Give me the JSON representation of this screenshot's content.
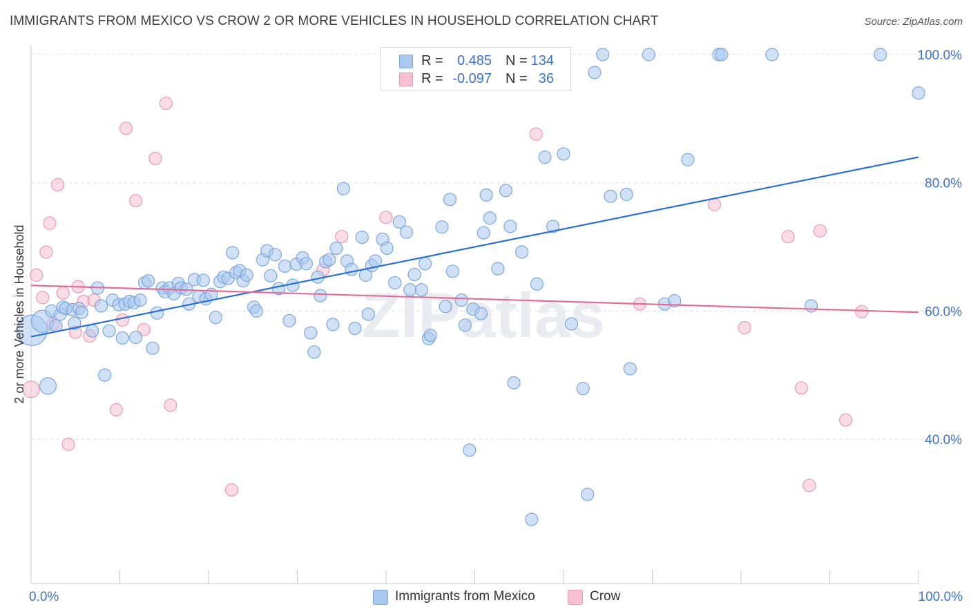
{
  "title": "IMMIGRANTS FROM MEXICO VS CROW 2 OR MORE VEHICLES IN HOUSEHOLD CORRELATION CHART",
  "source": "Source: ZipAtlas.com",
  "watermark": "ZIPatlas",
  "legend": {
    "rows": [
      {
        "r_label": "R =",
        "r_value": "0.485",
        "n_label": "N =",
        "n_value": "134"
      },
      {
        "r_label": "R =",
        "r_value": "-0.097",
        "n_label": "N =",
        "n_value": "36"
      }
    ]
  },
  "bottom_legend": {
    "series1": "Immigrants from Mexico",
    "series2": "Crow"
  },
  "colors": {
    "blue_fill": "#a9c8ee",
    "blue_stroke": "#7ba6dc",
    "blue_line": "#2a6fd0",
    "pink_fill": "#f6c0d0",
    "pink_stroke": "#e99ab3",
    "pink_line": "#e06d98",
    "tick_label": "#3b73c7",
    "grid": "#e1e1e1"
  },
  "chart_data": {
    "type": "scatter",
    "title": "IMMIGRANTS FROM MEXICO VS CROW 2 OR MORE VEHICLES IN HOUSEHOLD CORRELATION CHART",
    "xlabel": "",
    "ylabel": "2 or more Vehicles in Household",
    "xlim": [
      0,
      100
    ],
    "ylim": [
      17.5,
      100
    ],
    "x_tick_labels": [
      "0.0%",
      "100.0%"
    ],
    "y_ticks": [
      40,
      60,
      80,
      100
    ],
    "y_tick_labels": [
      "40.0%",
      "60.0%",
      "80.0%",
      "100.0%"
    ],
    "grid": true,
    "legend_position": "top-center",
    "series": [
      {
        "name": "Immigrants from Mexico",
        "r": 0.485,
        "n": 134,
        "trend": {
          "x": [
            0,
            100
          ],
          "y": [
            56.0,
            84.0
          ]
        },
        "points": [
          [
            0.1,
            57.0,
            22
          ],
          [
            1.3,
            58.4,
            16
          ],
          [
            1.9,
            48.3,
            12
          ],
          [
            2.3,
            60.0,
            9
          ],
          [
            2.8,
            57.7,
            9
          ],
          [
            3.3,
            59.5,
            9
          ],
          [
            3.6,
            60.6,
            9
          ],
          [
            3.9,
            60.4,
            9
          ],
          [
            4.7,
            60.2,
            9
          ],
          [
            4.9,
            58.1,
            9
          ],
          [
            5.4,
            60.4,
            9
          ],
          [
            5.7,
            59.8,
            9
          ],
          [
            6.9,
            56.9,
            9
          ],
          [
            7.5,
            63.6,
            9
          ],
          [
            7.9,
            60.8,
            9
          ],
          [
            8.3,
            50.0,
            9
          ],
          [
            8.8,
            56.9,
            9
          ],
          [
            9.2,
            61.7,
            9
          ],
          [
            9.9,
            61.0,
            9
          ],
          [
            10.3,
            55.8,
            9
          ],
          [
            10.6,
            61.1,
            9
          ],
          [
            11.1,
            61.5,
            9
          ],
          [
            11.6,
            61.3,
            9
          ],
          [
            11.8,
            55.9,
            9
          ],
          [
            12.3,
            61.7,
            9
          ],
          [
            12.8,
            64.4,
            9
          ],
          [
            13.2,
            64.7,
            9
          ],
          [
            13.7,
            54.2,
            9
          ],
          [
            14.2,
            59.7,
            9
          ],
          [
            14.8,
            63.6,
            9
          ],
          [
            15.1,
            63.0,
            9
          ],
          [
            15.6,
            63.6,
            9
          ],
          [
            16.1,
            62.7,
            9
          ],
          [
            16.6,
            64.3,
            9
          ],
          [
            16.9,
            63.6,
            9
          ],
          [
            17.5,
            63.4,
            9
          ],
          [
            17.8,
            61.1,
            9
          ],
          [
            18.4,
            64.9,
            9
          ],
          [
            18.9,
            62.3,
            9
          ],
          [
            19.4,
            64.8,
            9
          ],
          [
            19.7,
            61.9,
            9
          ],
          [
            20.3,
            62.6,
            9
          ],
          [
            20.8,
            59.0,
            9
          ],
          [
            21.3,
            64.6,
            9
          ],
          [
            21.7,
            65.3,
            9
          ],
          [
            22.2,
            65.1,
            9
          ],
          [
            22.7,
            69.1,
            9
          ],
          [
            23.1,
            66.0,
            9
          ],
          [
            23.5,
            66.3,
            9
          ],
          [
            23.9,
            64.7,
            9
          ],
          [
            24.3,
            65.6,
            9
          ],
          [
            25.1,
            60.6,
            9
          ],
          [
            25.4,
            60.0,
            9
          ],
          [
            26.1,
            68.0,
            9
          ],
          [
            26.6,
            69.4,
            9
          ],
          [
            27.0,
            65.5,
            9
          ],
          [
            27.5,
            68.8,
            9
          ],
          [
            27.9,
            63.5,
            9
          ],
          [
            28.6,
            67.0,
            9
          ],
          [
            29.1,
            58.5,
            9
          ],
          [
            29.5,
            64.0,
            9
          ],
          [
            29.9,
            67.3,
            9
          ],
          [
            30.6,
            68.3,
            9
          ],
          [
            31.0,
            67.4,
            9
          ],
          [
            31.5,
            56.6,
            9
          ],
          [
            31.9,
            53.6,
            9
          ],
          [
            32.3,
            65.3,
            9
          ],
          [
            32.6,
            62.4,
            9
          ],
          [
            33.2,
            67.7,
            9
          ],
          [
            33.6,
            68.0,
            9
          ],
          [
            34.0,
            57.9,
            9
          ],
          [
            34.4,
            69.8,
            9
          ],
          [
            35.2,
            79.1,
            9
          ],
          [
            35.6,
            67.8,
            9
          ],
          [
            36.1,
            66.5,
            9
          ],
          [
            36.5,
            57.3,
            9
          ],
          [
            37.3,
            71.5,
            9
          ],
          [
            37.7,
            65.6,
            9
          ],
          [
            38.0,
            59.5,
            9
          ],
          [
            38.4,
            67.1,
            9
          ],
          [
            38.8,
            67.8,
            9
          ],
          [
            39.6,
            71.2,
            9
          ],
          [
            40.1,
            69.8,
            9
          ],
          [
            41.0,
            64.4,
            9
          ],
          [
            41.5,
            73.9,
            9
          ],
          [
            42.3,
            72.3,
            9
          ],
          [
            42.7,
            63.3,
            9
          ],
          [
            43.2,
            65.7,
            9
          ],
          [
            44.0,
            63.3,
            9
          ],
          [
            44.4,
            67.4,
            9
          ],
          [
            44.8,
            55.7,
            9
          ],
          [
            45.0,
            56.2,
            9
          ],
          [
            46.3,
            73.1,
            9
          ],
          [
            46.7,
            60.7,
            9
          ],
          [
            47.2,
            77.4,
            9
          ],
          [
            47.5,
            66.2,
            9
          ],
          [
            48.5,
            61.7,
            9
          ],
          [
            48.9,
            57.8,
            9
          ],
          [
            49.4,
            38.3,
            9
          ],
          [
            49.8,
            60.3,
            9
          ],
          [
            50.7,
            59.6,
            9
          ],
          [
            51.0,
            72.2,
            9
          ],
          [
            51.3,
            78.1,
            9
          ],
          [
            51.7,
            74.5,
            9
          ],
          [
            52.6,
            66.6,
            9
          ],
          [
            53.5,
            78.8,
            9
          ],
          [
            54.0,
            73.2,
            9
          ],
          [
            54.4,
            48.8,
            9
          ],
          [
            55.3,
            69.2,
            9
          ],
          [
            56.1,
            100.0,
            9
          ],
          [
            56.4,
            27.5,
            9
          ],
          [
            57.0,
            64.2,
            9
          ],
          [
            57.9,
            84.0,
            9
          ],
          [
            58.8,
            73.2,
            9
          ],
          [
            60.0,
            84.5,
            9
          ],
          [
            60.9,
            58.0,
            9
          ],
          [
            62.2,
            47.9,
            9
          ],
          [
            62.7,
            31.4,
            9
          ],
          [
            63.5,
            97.2,
            9
          ],
          [
            64.4,
            100.0,
            9
          ],
          [
            65.3,
            77.9,
            9
          ],
          [
            67.1,
            78.2,
            9
          ],
          [
            67.5,
            51.0,
            9
          ],
          [
            69.6,
            100.0,
            9
          ],
          [
            71.4,
            61.1,
            9
          ],
          [
            72.5,
            61.6,
            9
          ],
          [
            74.0,
            83.6,
            9
          ],
          [
            77.5,
            100.0,
            9
          ],
          [
            77.8,
            100.0,
            9
          ],
          [
            83.5,
            100.0,
            9
          ],
          [
            87.9,
            60.8,
            9
          ],
          [
            95.7,
            100.0,
            9
          ],
          [
            100.0,
            94.0,
            9
          ]
        ]
      },
      {
        "name": "Crow",
        "r": -0.097,
        "n": 36,
        "trend": {
          "x": [
            0,
            100
          ],
          "y": [
            64.0,
            59.8
          ]
        },
        "points": [
          [
            0.0,
            47.8,
            12
          ],
          [
            0.6,
            65.6,
            9
          ],
          [
            1.3,
            62.1,
            9
          ],
          [
            1.7,
            69.2,
            9
          ],
          [
            2.1,
            73.7,
            9
          ],
          [
            2.5,
            58.0,
            9
          ],
          [
            3.0,
            79.7,
            9
          ],
          [
            3.6,
            62.8,
            9
          ],
          [
            4.2,
            39.2,
            9
          ],
          [
            5.0,
            56.7,
            9
          ],
          [
            5.3,
            63.8,
            9
          ],
          [
            5.9,
            61.5,
            9
          ],
          [
            6.6,
            56.1,
            9
          ],
          [
            7.1,
            61.7,
            9
          ],
          [
            9.6,
            44.6,
            9
          ],
          [
            10.3,
            58.6,
            9
          ],
          [
            10.7,
            88.5,
            9
          ],
          [
            11.8,
            77.2,
            9
          ],
          [
            12.7,
            57.1,
            9
          ],
          [
            14.0,
            83.8,
            9
          ],
          [
            15.2,
            92.4,
            9
          ],
          [
            15.7,
            45.3,
            9
          ],
          [
            22.6,
            32.1,
            9
          ],
          [
            32.9,
            66.4,
            9
          ],
          [
            35.0,
            71.6,
            9
          ],
          [
            40.0,
            74.6,
            9
          ],
          [
            56.9,
            87.6,
            9
          ],
          [
            68.6,
            61.1,
            9
          ],
          [
            77.0,
            76.6,
            9
          ],
          [
            80.4,
            57.4,
            9
          ],
          [
            85.3,
            71.6,
            9
          ],
          [
            86.8,
            48.0,
            9
          ],
          [
            87.7,
            32.8,
            9
          ],
          [
            88.9,
            72.5,
            9
          ],
          [
            91.8,
            43.0,
            9
          ],
          [
            93.6,
            59.9,
            9
          ]
        ]
      }
    ]
  }
}
